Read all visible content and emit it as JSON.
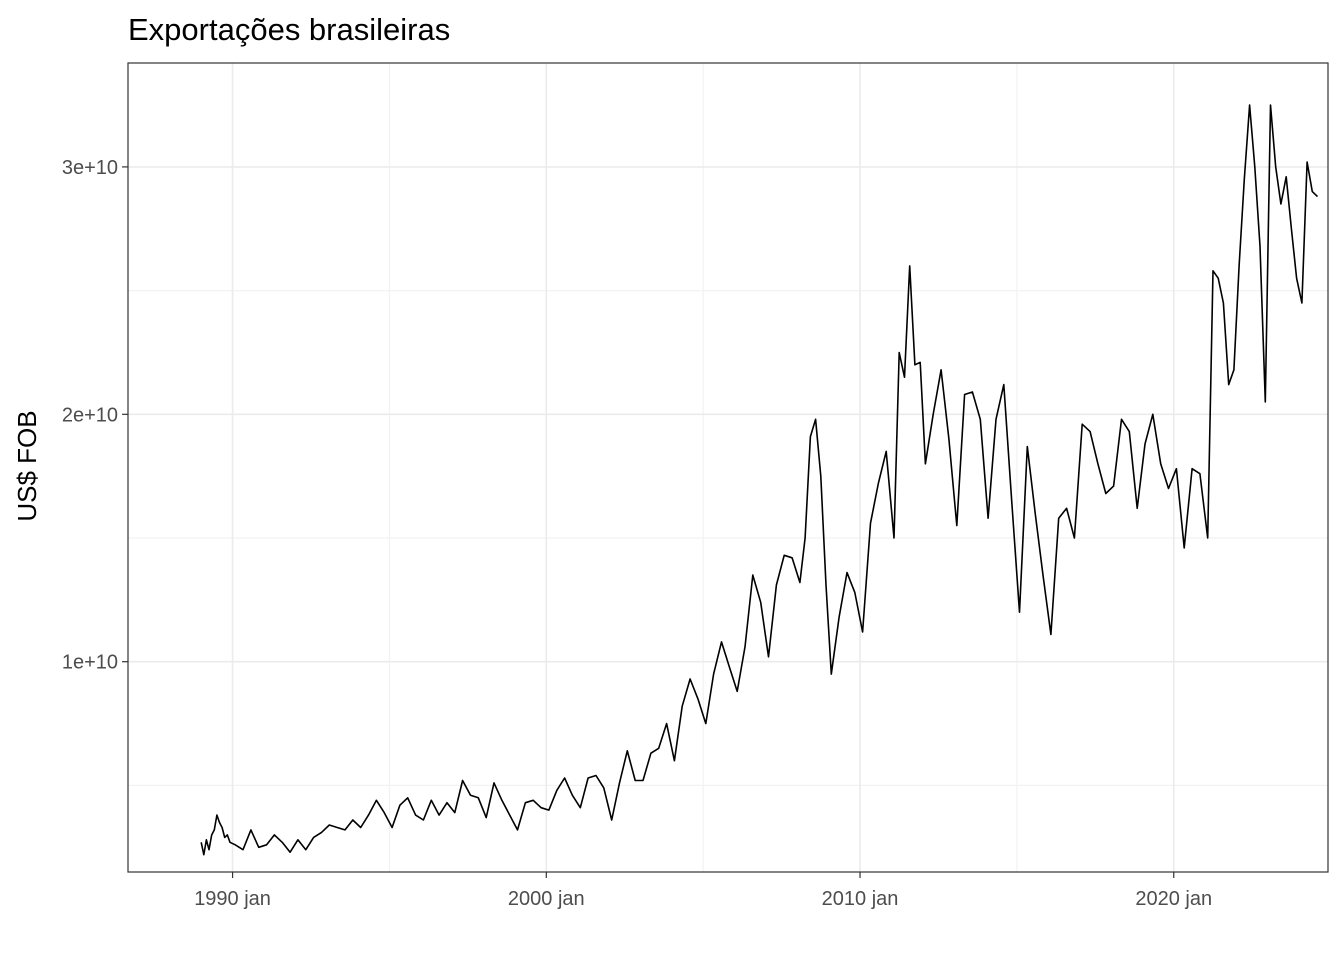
{
  "chart_data": {
    "type": "line",
    "title": "Exportações brasileiras",
    "xlabel": "",
    "ylabel": "US$ FOB",
    "x_ticks": [
      {
        "value": "1990-01",
        "label": "1990 jan"
      },
      {
        "value": "2000-01",
        "label": "2000 jan"
      },
      {
        "value": "2010-01",
        "label": "2010 jan"
      },
      {
        "value": "2020-01",
        "label": "2020 jan"
      }
    ],
    "y_ticks": [
      {
        "value": 10000000000,
        "label": "1e+10"
      },
      {
        "value": 20000000000,
        "label": "2e+10"
      },
      {
        "value": 30000000000,
        "label": "3e+10"
      }
    ],
    "xlim": [
      "1986-09",
      "2024-12"
    ],
    "ylim": [
      1500000000,
      34200000000
    ],
    "grid": true,
    "line_color": "#000000",
    "series": [
      {
        "x": [
          "1989-01",
          "1989-02",
          "1989-03",
          "1989-04",
          "1989-05",
          "1989-06",
          "1989-07",
          "1989-08",
          "1989-09",
          "1989-10",
          "1989-11",
          "1989-12",
          "1990-02",
          "1990-05",
          "1990-08",
          "1990-11",
          "1991-02",
          "1991-05",
          "1991-08",
          "1991-11",
          "1992-02",
          "1992-05",
          "1992-08",
          "1992-11",
          "1993-02",
          "1993-05",
          "1993-08",
          "1993-11",
          "1994-02",
          "1994-05",
          "1994-08",
          "1994-11",
          "1995-02",
          "1995-05",
          "1995-08",
          "1995-11",
          "1996-02",
          "1996-05",
          "1996-08",
          "1996-11",
          "1997-02",
          "1997-05",
          "1997-08",
          "1997-11",
          "1998-02",
          "1998-05",
          "1998-08",
          "1998-11",
          "1999-02",
          "1999-05",
          "1999-08",
          "1999-11",
          "2000-02",
          "2000-05",
          "2000-08",
          "2000-11",
          "2001-02",
          "2001-05",
          "2001-08",
          "2001-11",
          "2002-02",
          "2002-05",
          "2002-08",
          "2002-11",
          "2003-02",
          "2003-05",
          "2003-08",
          "2003-11",
          "2004-02",
          "2004-05",
          "2004-08",
          "2004-11",
          "2005-02",
          "2005-05",
          "2005-08",
          "2005-11",
          "2006-02",
          "2006-05",
          "2006-08",
          "2006-11",
          "2007-02",
          "2007-05",
          "2007-08",
          "2007-11",
          "2008-02",
          "2008-04",
          "2008-06",
          "2008-08",
          "2008-10",
          "2008-12",
          "2009-02",
          "2009-05",
          "2009-08",
          "2009-11",
          "2010-02",
          "2010-05",
          "2010-08",
          "2010-11",
          "2011-02",
          "2011-04",
          "2011-06",
          "2011-08",
          "2011-10",
          "2011-12",
          "2012-02",
          "2012-05",
          "2012-08",
          "2012-11",
          "2013-02",
          "2013-05",
          "2013-08",
          "2013-11",
          "2014-02",
          "2014-05",
          "2014-08",
          "2014-11",
          "2015-02",
          "2015-05",
          "2015-08",
          "2015-11",
          "2016-02",
          "2016-05",
          "2016-08",
          "2016-11",
          "2017-02",
          "2017-05",
          "2017-08",
          "2017-11",
          "2018-02",
          "2018-05",
          "2018-08",
          "2018-11",
          "2019-02",
          "2019-05",
          "2019-08",
          "2019-11",
          "2020-02",
          "2020-05",
          "2020-08",
          "2020-11",
          "2021-02",
          "2021-04",
          "2021-06",
          "2021-08",
          "2021-10",
          "2021-12",
          "2022-02",
          "2022-04",
          "2022-06",
          "2022-08",
          "2022-10",
          "2022-12",
          "2023-02",
          "2023-04",
          "2023-06",
          "2023-08",
          "2023-10",
          "2023-12",
          "2024-02",
          "2024-04",
          "2024-06",
          "2024-08"
        ],
        "y": [
          2700000000.0,
          2200000000.0,
          2800000000.0,
          2400000000.0,
          3000000000.0,
          3200000000.0,
          3800000000.0,
          3500000000.0,
          3300000000.0,
          2900000000.0,
          3000000000.0,
          2700000000.0,
          2600000000.0,
          2400000000.0,
          3200000000.0,
          2500000000.0,
          2600000000.0,
          3000000000.0,
          2700000000.0,
          2300000000.0,
          2800000000.0,
          2400000000.0,
          2900000000.0,
          3100000000.0,
          3400000000.0,
          3300000000.0,
          3200000000.0,
          3600000000.0,
          3300000000.0,
          3800000000.0,
          4400000000.0,
          3900000000.0,
          3300000000.0,
          4200000000.0,
          4500000000.0,
          3800000000.0,
          3600000000.0,
          4400000000.0,
          3800000000.0,
          4300000000.0,
          3900000000.0,
          5200000000.0,
          4600000000.0,
          4500000000.0,
          3700000000.0,
          5100000000.0,
          4400000000.0,
          3800000000.0,
          3200000000.0,
          4300000000.0,
          4400000000.0,
          4100000000.0,
          4000000000.0,
          4800000000.0,
          5300000000.0,
          4600000000.0,
          4100000000.0,
          5300000000.0,
          5400000000.0,
          4900000000.0,
          3600000000.0,
          5100000000.0,
          6400000000.0,
          5200000000.0,
          5200000000.0,
          6300000000.0,
          6500000000.0,
          7500000000.0,
          6000000000.0,
          8200000000.0,
          9300000000.0,
          8500000000.0,
          7500000000.0,
          9500000000.0,
          10800000000.0,
          9800000000.0,
          8800000000.0,
          10600000000.0,
          13500000000.0,
          12400000000.0,
          10200000000.0,
          13100000000.0,
          14300000000.0,
          14200000000.0,
          13200000000.0,
          15000000000.0,
          19100000000.0,
          19800000000.0,
          17500000000.0,
          13100000000.0,
          9500000000.0,
          11800000000.0,
          13600000000.0,
          12800000000.0,
          11200000000.0,
          15600000000.0,
          17200000000.0,
          18500000000.0,
          15000000000.0,
          22500000000.0,
          21500000000.0,
          26000000000.0,
          22000000000.0,
          22100000000.0,
          18000000000.0,
          20000000000.0,
          21800000000.0,
          19000000000.0,
          15500000000.0,
          20800000000.0,
          20900000000.0,
          19800000000.0,
          15800000000.0,
          19800000000.0,
          21200000000.0,
          16500000000.0,
          12000000000.0,
          18700000000.0,
          16000000000.0,
          13500000000.0,
          11100000000.0,
          15800000000.0,
          16200000000.0,
          15000000000.0,
          19600000000.0,
          19300000000.0,
          18000000000.0,
          16800000000.0,
          17100000000.0,
          19800000000.0,
          19300000000.0,
          16200000000.0,
          18800000000.0,
          20000000000.0,
          18000000000.0,
          17000000000.0,
          17800000000.0,
          14600000000.0,
          17800000000.0,
          17600000000.0,
          15000000000.0,
          25800000000.0,
          25500000000.0,
          24500000000.0,
          21200000000.0,
          21800000000.0,
          26000000000.0,
          29500000000.0,
          32500000000.0,
          30000000000.0,
          26800000000.0,
          20500000000.0,
          32500000000.0,
          30000000000.0,
          28500000000.0,
          29600000000.0,
          27500000000.0,
          25500000000.0,
          24500000000.0,
          30200000000.0,
          29000000000.0,
          28800000000.0
        ]
      }
    ]
  }
}
